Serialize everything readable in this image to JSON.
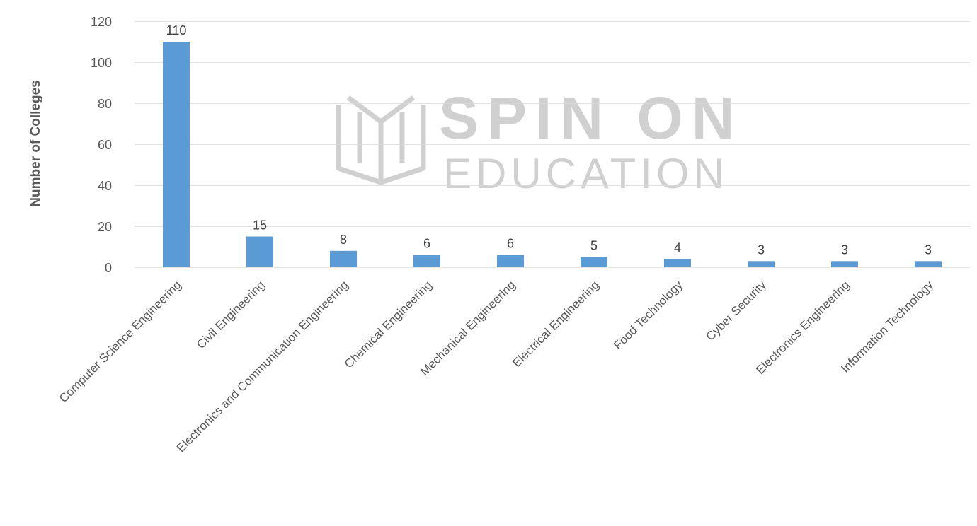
{
  "chart_data": {
    "type": "bar",
    "title": "",
    "xlabel": "",
    "ylabel": "Number of Colleges",
    "ylim": [
      0,
      120
    ],
    "yticks": [
      0,
      20,
      40,
      60,
      80,
      100,
      120
    ],
    "grid": true,
    "legend": "none",
    "categories": [
      "Computer Science Engineering",
      "Civil Engineering",
      "Electronics and Communication Engineering",
      "Chemical Engineering",
      "Mechanical Engineering",
      "Electrical Engineering",
      "Food Technology",
      "Cyber Security",
      "Electronics Engineering",
      "Information Technology"
    ],
    "values": [
      110,
      15,
      8,
      6,
      6,
      5,
      4,
      3,
      3,
      3
    ],
    "data_labels": true,
    "bar_color": "#5B9BD5"
  },
  "watermark": {
    "brand": "SPIN ON",
    "tagline": "EDUCATION"
  },
  "colors": {
    "grid": "#d9d9d9",
    "axis_text": "#595959",
    "label_text": "#404040",
    "watermark": "#d0d0d0"
  }
}
